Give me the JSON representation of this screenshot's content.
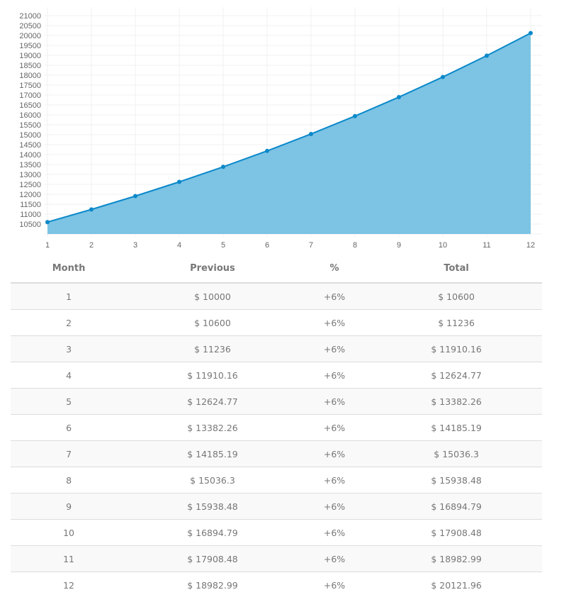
{
  "chart_data": {
    "type": "area",
    "title": "",
    "xlabel": "",
    "ylabel": "",
    "categories": [
      "1",
      "2",
      "3",
      "4",
      "5",
      "6",
      "7",
      "8",
      "9",
      "10",
      "11",
      "12"
    ],
    "series": [
      {
        "name": "Total",
        "values": [
          10600,
          11236,
          11910.16,
          12624.77,
          13382.26,
          14185.19,
          15036.3,
          15938.48,
          16894.79,
          17908.48,
          18982.99,
          20121.96
        ]
      }
    ],
    "yticks": [
      10500,
      11000,
      11500,
      12000,
      12500,
      13000,
      13500,
      14000,
      14500,
      15000,
      15500,
      16000,
      16500,
      17000,
      17500,
      18000,
      18500,
      19000,
      19500,
      20000,
      20500,
      21000
    ],
    "ylim": [
      10000,
      21000
    ],
    "grid": true,
    "legend": "none",
    "colors": {
      "line": "#0a88c9",
      "fill": "#7cc3e4",
      "grid": "#f0f0f0"
    }
  },
  "table": {
    "headers": {
      "month": "Month",
      "previous": "Previous",
      "percent": "%",
      "total": "Total"
    },
    "rows": [
      {
        "month": "1",
        "previous": "$ 10000",
        "percent": "+6%",
        "total": "$ 10600"
      },
      {
        "month": "2",
        "previous": "$ 10600",
        "percent": "+6%",
        "total": "$ 11236"
      },
      {
        "month": "3",
        "previous": "$ 11236",
        "percent": "+6%",
        "total": "$ 11910.16"
      },
      {
        "month": "4",
        "previous": "$ 11910.16",
        "percent": "+6%",
        "total": "$ 12624.77"
      },
      {
        "month": "5",
        "previous": "$ 12624.77",
        "percent": "+6%",
        "total": "$ 13382.26"
      },
      {
        "month": "6",
        "previous": "$ 13382.26",
        "percent": "+6%",
        "total": "$ 14185.19"
      },
      {
        "month": "7",
        "previous": "$ 14185.19",
        "percent": "+6%",
        "total": "$ 15036.3"
      },
      {
        "month": "8",
        "previous": "$ 15036.3",
        "percent": "+6%",
        "total": "$ 15938.48"
      },
      {
        "month": "9",
        "previous": "$ 15938.48",
        "percent": "+6%",
        "total": "$ 16894.79"
      },
      {
        "month": "10",
        "previous": "$ 16894.79",
        "percent": "+6%",
        "total": "$ 17908.48"
      },
      {
        "month": "11",
        "previous": "$ 17908.48",
        "percent": "+6%",
        "total": "$ 18982.99"
      },
      {
        "month": "12",
        "previous": "$ 18982.99",
        "percent": "+6%",
        "total": "$ 20121.96"
      }
    ]
  }
}
